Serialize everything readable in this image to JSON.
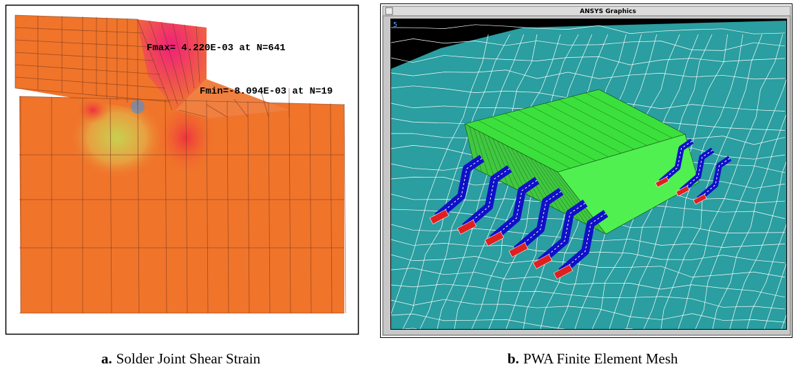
{
  "panels": [
    {
      "annotations": [
        "Fmax= 4.220E-03 at N=641",
        "Fmin=-8.094E-03 at N=19"
      ],
      "label": "a.",
      "caption": "Solder Joint Shear Strain"
    },
    {
      "window_title": "ANSYS Graphics",
      "view_number": "5",
      "label": "b.",
      "caption": "PWA Finite Element Mesh"
    }
  ]
}
